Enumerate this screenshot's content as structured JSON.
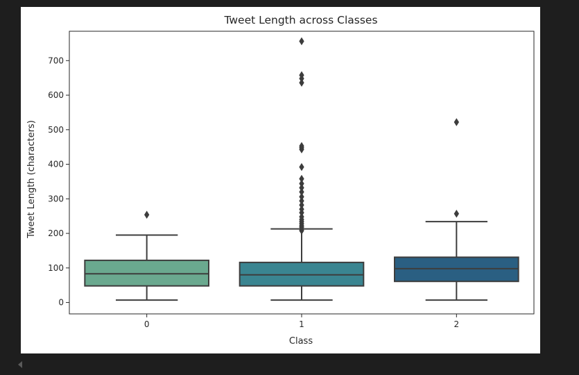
{
  "chart_data": {
    "type": "box",
    "title": "Tweet Length across Classes",
    "xlabel": "Class",
    "ylabel": "Tweet Length (characters)",
    "categories": [
      "0",
      "1",
      "2"
    ],
    "ylim": [
      -33,
      785
    ],
    "yticks": [
      0,
      100,
      200,
      300,
      400,
      500,
      600,
      700
    ],
    "grid": false,
    "boxes": [
      {
        "category": "0",
        "whisker_low": 7,
        "q1": 48,
        "median": 83,
        "q3": 122,
        "whisker_high": 195,
        "outliers": [
          254
        ],
        "color": "#6aa98f"
      },
      {
        "category": "1",
        "whisker_low": 7,
        "q1": 48,
        "median": 80,
        "q3": 116,
        "whisker_high": 213,
        "outliers": [
          208,
          212,
          218,
          222,
          228,
          234,
          240,
          248,
          260,
          270,
          282,
          294,
          306,
          320,
          332,
          344,
          358,
          392,
          443,
          448,
          453,
          636,
          648,
          658,
          756
        ],
        "color": "#3a8591"
      },
      {
        "category": "2",
        "whisker_low": 7,
        "q1": 61,
        "median": 98,
        "q3": 131,
        "whisker_high": 234,
        "outliers": [
          257,
          522
        ],
        "color": "#2a5f82"
      }
    ],
    "line_color": "#3d3d3d"
  }
}
